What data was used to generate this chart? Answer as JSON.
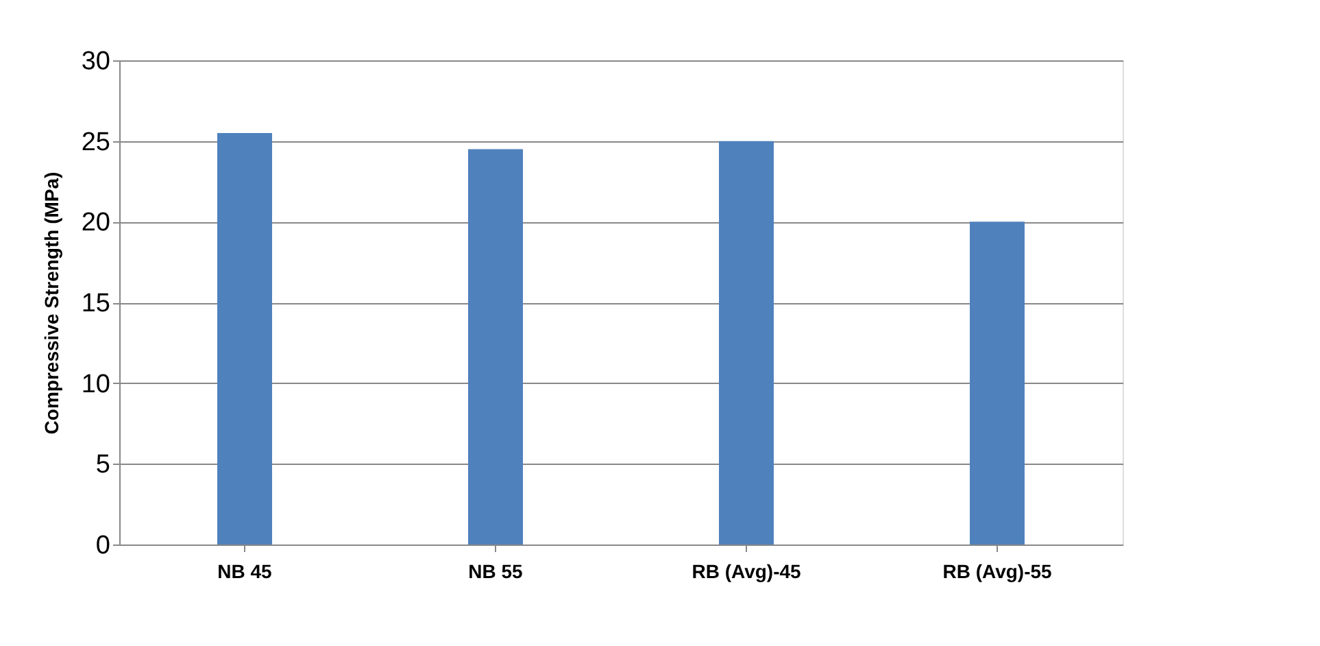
{
  "chart_data": {
    "type": "bar",
    "ylabel": "Compressive Strength (MPa)",
    "categories": [
      "NB 45",
      "NB 55",
      "RB (Avg)-45",
      "RB (Avg)-55"
    ],
    "series": [
      {
        "color": "#4f81bd",
        "values": [
          25.5,
          24.5,
          25,
          20
        ]
      }
    ],
    "ylim": [
      0,
      30
    ],
    "yticks": [
      0,
      5,
      10,
      15,
      20,
      25,
      30
    ],
    "grid": "y",
    "legend": false
  }
}
